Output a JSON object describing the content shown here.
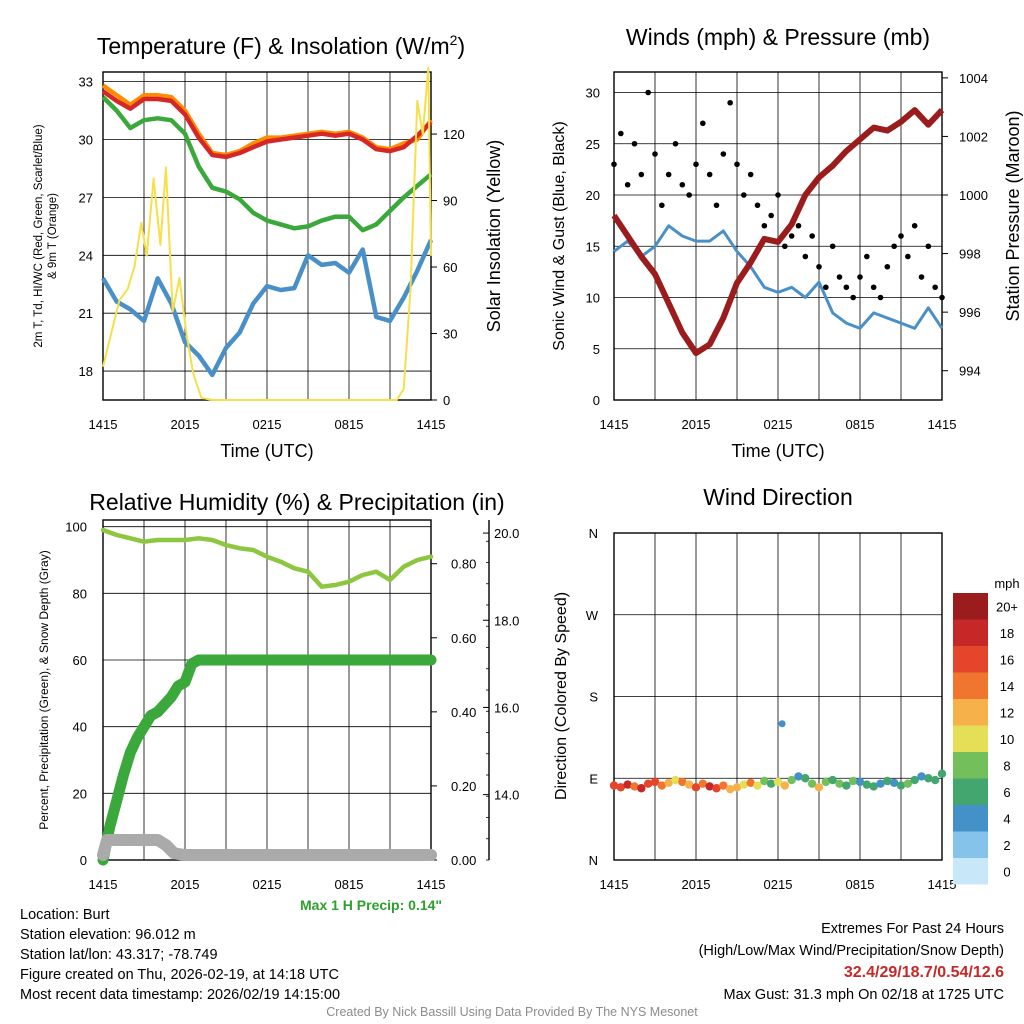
{
  "colors": {
    "temp_red": "#d62728",
    "temp_scarlet": "#e53b2c",
    "temp_orange": "#ff8c00",
    "dewpoint_green": "#3aa83a",
    "windchill_blue": "#4a90c8",
    "solar_yellow": "#f5e04a",
    "wind_blue": "#4a90c8",
    "gust_black": "#000000",
    "pressure_maroon": "#9b1c1c",
    "rh_green": "#8dc63f",
    "precip_green": "#3aa83a",
    "snow_gray": "#aaaaaa",
    "maxprecip_green": "#2ca02c",
    "extreme_red": "#c62828",
    "credit_gray": "#8c8c8c"
  },
  "chart_data": [
    {
      "id": "temp",
      "type": "line",
      "title": "Temperature (F) & Insolation (W/m²)",
      "title_main": "Temperature (F) & Insolation (W/m",
      "title_sup": "2",
      "title_close": ")",
      "xlabel": "Time (UTC)",
      "ylabel_left_line1": "2m T, Td, HI/WC (Red, Green, Scarlet/Blue)",
      "ylabel_left_line2": "& 9m T (Orange)",
      "ylabel_right": "Solar Insolation (Yellow)",
      "xticks": [
        "1415",
        "2015",
        "0215",
        "0815",
        "1415"
      ],
      "xlim": [
        0,
        24
      ],
      "ylim_left": [
        16.5,
        33.5
      ],
      "ylim_right": [
        0,
        148
      ],
      "yticks_left": [
        18,
        21,
        24,
        27,
        30,
        33
      ],
      "yticks_right": [
        0,
        30,
        60,
        90,
        120
      ],
      "series": [
        {
          "name": "9m T (Orange)",
          "axis": "left",
          "color": "#ff8c00",
          "x": [
            0,
            1,
            2,
            3,
            4,
            5,
            6,
            7,
            8,
            9,
            10,
            11,
            12,
            13,
            14,
            15,
            16,
            17,
            18,
            19,
            20,
            21,
            22,
            23,
            24
          ],
          "y": [
            32.8,
            32.3,
            31.8,
            32.3,
            32.3,
            32.2,
            31.5,
            30.3,
            29.3,
            29.2,
            29.4,
            29.8,
            30.1,
            30.1,
            30.2,
            30.3,
            30.4,
            30.3,
            30.4,
            30.1,
            29.6,
            29.5,
            29.8,
            30.0,
            31.0
          ]
        },
        {
          "name": "2m T (Red)",
          "axis": "left",
          "color": "#d62728",
          "x": [
            0,
            1,
            2,
            3,
            4,
            5,
            6,
            7,
            8,
            9,
            10,
            11,
            12,
            13,
            14,
            15,
            16,
            17,
            18,
            19,
            20,
            21,
            22,
            23,
            24
          ],
          "y": [
            32.5,
            32.0,
            31.6,
            32.1,
            32.1,
            32.0,
            31.3,
            30.1,
            29.2,
            29.1,
            29.3,
            29.6,
            29.9,
            30.0,
            30.1,
            30.2,
            30.3,
            30.2,
            30.3,
            30.0,
            29.5,
            29.4,
            29.6,
            30.2,
            30.9
          ]
        },
        {
          "name": "Td (Green)",
          "axis": "left",
          "color": "#3aa83a",
          "x": [
            0,
            1,
            2,
            3,
            4,
            5,
            6,
            7,
            8,
            9,
            10,
            11,
            12,
            13,
            14,
            15,
            16,
            17,
            18,
            19,
            20,
            21,
            22,
            23,
            24
          ],
          "y": [
            32.2,
            31.5,
            30.6,
            31.0,
            31.1,
            31.0,
            30.3,
            28.6,
            27.5,
            27.3,
            26.9,
            26.2,
            25.8,
            25.6,
            25.4,
            25.5,
            25.8,
            26.0,
            26.0,
            25.3,
            25.6,
            26.3,
            27.0,
            27.6,
            28.2
          ]
        },
        {
          "name": "HI/WC (Blue)",
          "axis": "left",
          "color": "#4a90c8",
          "x": [
            0,
            1,
            2,
            3,
            4,
            5,
            6,
            7,
            8,
            9,
            10,
            11,
            12,
            13,
            14,
            15,
            16,
            17,
            18,
            19,
            20,
            21,
            22,
            23,
            24
          ],
          "y": [
            22.8,
            21.6,
            21.2,
            20.6,
            22.8,
            21.5,
            19.5,
            18.8,
            17.8,
            19.2,
            20.0,
            21.5,
            22.4,
            22.2,
            22.3,
            24.0,
            23.5,
            23.6,
            23.1,
            24.3,
            20.8,
            20.6,
            21.8,
            23.2,
            24.8
          ]
        },
        {
          "name": "Solar Insolation (Yellow)",
          "axis": "right",
          "color": "#f5e04a",
          "x": [
            0,
            0.6,
            1.2,
            1.8,
            2.3,
            2.8,
            3.2,
            3.7,
            4.2,
            4.6,
            5.1,
            5.6,
            6.1,
            6.6,
            7.2,
            8,
            12,
            16,
            20,
            21.5,
            22.0,
            22.5,
            23.0,
            23.4,
            23.8,
            24
          ],
          "y": [
            15,
            30,
            45,
            50,
            60,
            80,
            65,
            100,
            70,
            105,
            40,
            55,
            30,
            12,
            1,
            0,
            0,
            0,
            0,
            0,
            5,
            50,
            135,
            120,
            150,
            65
          ]
        }
      ]
    },
    {
      "id": "wind",
      "type": "line",
      "title": "Winds (mph) & Pressure (mb)",
      "xlabel": "Time (UTC)",
      "ylabel_left": "Sonic Wind & Gust (Blue, Black)",
      "ylabel_right": "Station Pressure (Maroon)",
      "xticks": [
        "1415",
        "2015",
        "0215",
        "0815",
        "1415"
      ],
      "xlim": [
        0,
        24
      ],
      "ylim_left": [
        0,
        32
      ],
      "ylim_right": [
        993.0,
        1004.2
      ],
      "yticks_left": [
        0,
        5,
        10,
        15,
        20,
        25,
        30
      ],
      "yticks_right": [
        994,
        996,
        998,
        1000,
        1002,
        1004
      ],
      "series": [
        {
          "name": "Sonic Wind (Blue)",
          "axis": "left",
          "color": "#4a90c8",
          "x": [
            0,
            1,
            2,
            3,
            4,
            5,
            6,
            7,
            8,
            9,
            10,
            11,
            12,
            13,
            14,
            15,
            16,
            17,
            18,
            19,
            20,
            21,
            22,
            23,
            24
          ],
          "y": [
            14.5,
            15.5,
            14.0,
            15.0,
            17.0,
            16.0,
            15.5,
            15.5,
            16.5,
            14.5,
            13.0,
            11.0,
            10.5,
            11.0,
            10.0,
            11.5,
            8.5,
            7.5,
            7.0,
            8.5,
            8.0,
            7.5,
            7.0,
            9.0,
            7.0
          ]
        },
        {
          "name": "Gust (Black)",
          "axis": "left",
          "color": "#000000",
          "style": "points",
          "x": [
            0,
            0.5,
            1,
            1.5,
            2,
            2.5,
            3,
            3.5,
            4,
            4.5,
            5,
            5.5,
            6,
            6.5,
            7,
            7.5,
            8,
            8.5,
            9,
            9.5,
            10,
            10.5,
            11,
            11.5,
            12,
            12.5,
            13,
            13.5,
            14,
            14.5,
            15,
            15.5,
            16,
            16.5,
            17,
            17.5,
            18,
            18.5,
            19,
            19.5,
            20,
            20.5,
            21,
            21.5,
            22,
            22.5,
            23,
            23.5,
            24
          ],
          "y": [
            23,
            26,
            21,
            25,
            22,
            30,
            24,
            19,
            22,
            25,
            21,
            20,
            23,
            27,
            22,
            19,
            24,
            29,
            23,
            20,
            22,
            19,
            17,
            18,
            20,
            15,
            16,
            17,
            14,
            16,
            13,
            11,
            15,
            12,
            11,
            10,
            12,
            14,
            11,
            10,
            13,
            15,
            16,
            14,
            17,
            12,
            15,
            11,
            10
          ]
        },
        {
          "name": "Station Pressure (Maroon)",
          "axis": "right",
          "color": "#9b1c1c",
          "x": [
            0,
            1,
            2,
            3,
            4,
            5,
            6,
            7,
            8,
            9,
            10,
            11,
            12,
            13,
            14,
            15,
            16,
            17,
            18,
            19,
            20,
            21,
            22,
            23,
            24
          ],
          "y": [
            999.3,
            998.6,
            997.9,
            997.3,
            996.3,
            995.3,
            994.6,
            994.9,
            995.8,
            997.0,
            997.7,
            998.5,
            998.4,
            999.0,
            1000.0,
            1000.6,
            1001.0,
            1001.5,
            1001.9,
            1002.3,
            1002.2,
            1002.5,
            1002.9,
            1002.4,
            1002.9
          ]
        }
      ]
    },
    {
      "id": "rh",
      "type": "line",
      "title": "Relative Humidity (%) & Precipitation (in)",
      "ylabel_left": "Percent, Precipitation (Green), & Snow Depth (Gray)",
      "xticks": [
        "1415",
        "2015",
        "0215",
        "0815",
        "1415"
      ],
      "xlim": [
        0,
        24
      ],
      "ylim_left": [
        0,
        102
      ],
      "ylim_mid": [
        0,
        0.918
      ],
      "ylim_right": [
        12.5,
        20.3
      ],
      "yticks_left": [
        0,
        20,
        40,
        60,
        80,
        100
      ],
      "yticks_mid": [
        "0.00",
        "0.20",
        "0.40",
        "0.60",
        "0.80"
      ],
      "yticks_right": [
        "14.0",
        "16.0",
        "18.0",
        "20.0"
      ],
      "series": [
        {
          "name": "Relative Humidity (Green)",
          "axis": "left",
          "color": "#8dc63f",
          "x": [
            0,
            1,
            2,
            3,
            4,
            5,
            6,
            7,
            8,
            9,
            10,
            11,
            12,
            13,
            14,
            15,
            16,
            17,
            18,
            19,
            20,
            21,
            22,
            23,
            24
          ],
          "y": [
            99,
            97.5,
            96.5,
            95.5,
            96,
            96,
            96,
            96.5,
            96,
            94.5,
            93.5,
            93,
            91,
            89.5,
            87.5,
            86.5,
            82,
            82.5,
            83.5,
            85.5,
            86.5,
            84,
            88,
            90,
            91
          ]
        },
        {
          "name": "Precipitation (Green)",
          "axis": "mid",
          "color": "#3aa83a",
          "x": [
            0,
            0.5,
            1,
            1.5,
            2,
            2.5,
            3,
            3.5,
            4,
            4.5,
            5,
            5.5,
            6,
            6.5,
            7,
            8,
            10,
            12,
            14,
            16,
            18,
            20,
            22,
            24
          ],
          "y": [
            0.0,
            0.09,
            0.16,
            0.23,
            0.29,
            0.33,
            0.36,
            0.39,
            0.4,
            0.42,
            0.44,
            0.47,
            0.48,
            0.53,
            0.54,
            0.54,
            0.54,
            0.54,
            0.54,
            0.54,
            0.54,
            0.54,
            0.54,
            0.54
          ]
        },
        {
          "name": "Snow Depth (Gray)",
          "axis": "left",
          "color": "#aaaaaa",
          "x": [
            0,
            0.3,
            1,
            2,
            3,
            4,
            4.6,
            5.2,
            6,
            8,
            10,
            12,
            14,
            16,
            18,
            20,
            22,
            24
          ],
          "y": [
            1.5,
            6,
            6,
            6,
            6,
            6,
            4.5,
            2,
            1.5,
            1.5,
            1.5,
            1.5,
            1.5,
            1.5,
            1.5,
            1.5,
            1.5,
            1.5
          ]
        }
      ]
    },
    {
      "id": "dir",
      "type": "scatter",
      "title": "Wind Direction",
      "ylabel": "Direction (Colored By Speed)",
      "xticks": [
        "1415",
        "2015",
        "0215",
        "0815",
        "1415"
      ],
      "xlim": [
        0,
        24
      ],
      "ylim": [
        0,
        360
      ],
      "yticks": [
        "N",
        "E",
        "S",
        "W",
        "N"
      ],
      "yticks_values": [
        0,
        90,
        180,
        270,
        360
      ],
      "legend": {
        "title": "mph",
        "labels": [
          "0",
          "2",
          "4",
          "6",
          "8",
          "10",
          "12",
          "14",
          "16",
          "18",
          "20+"
        ],
        "colors": [
          "#c8e7f9",
          "#86c3ea",
          "#4490c8",
          "#42a66e",
          "#73bf5c",
          "#e4df56",
          "#f6b14a",
          "#f0762f",
          "#e4452b",
          "#c62828",
          "#9b1c1c"
        ]
      },
      "points": {
        "x": [
          0,
          0.5,
          1,
          1.5,
          2,
          2.5,
          3,
          3.5,
          4,
          4.5,
          5,
          5.5,
          6,
          6.5,
          7,
          7.5,
          8,
          8.5,
          9,
          9.5,
          10,
          10.5,
          11,
          11.5,
          12,
          12.5,
          13,
          13.5,
          14,
          14.5,
          15,
          15.5,
          16,
          16.5,
          17,
          17.5,
          18,
          18.5,
          19,
          19.5,
          20,
          20.5,
          21,
          21.5,
          22,
          22.5,
          23,
          23.5,
          24
        ],
        "y": [
          82,
          80,
          83,
          81,
          79,
          84,
          86,
          82,
          85,
          88,
          86,
          83,
          80,
          84,
          81,
          79,
          82,
          78,
          80,
          83,
          85,
          82,
          87,
          84,
          86,
          82,
          88,
          92,
          90,
          84,
          80,
          86,
          88,
          84,
          82,
          87,
          86,
          83,
          81,
          84,
          87,
          85,
          82,
          84,
          88,
          92,
          90,
          88,
          95
        ],
        "speed": [
          16,
          17,
          18,
          15,
          19,
          17,
          16,
          14,
          12,
          10,
          14,
          13,
          16,
          15,
          18,
          17,
          14,
          13,
          12,
          10,
          14,
          11,
          8,
          6,
          10,
          12,
          9,
          5,
          7,
          9,
          12,
          8,
          6,
          8,
          7,
          9,
          5,
          6,
          7,
          4,
          6,
          5,
          7,
          8,
          6,
          5,
          6,
          7,
          6
        ]
      },
      "outlier": {
        "x": 12.3,
        "y": 150,
        "speed": 4
      }
    }
  ],
  "annotations": {
    "max_precip": "Max 1 H Precip: 0.14\""
  },
  "info": {
    "location": "Location: Burt",
    "elevation": "Station elevation: 96.012 m",
    "latlon": "Station lat/lon: 43.317; -78.749",
    "created": "Figure created on Thu, 2026-02-19, at 14:18 UTC",
    "recent": "Most recent data timestamp: 2026/02/19 14:15:00"
  },
  "extremes": {
    "title": "Extremes For Past 24 Hours",
    "subtitle": "(High/Low/Max Wind/Precipitation/Snow Depth)",
    "values": "32.4/29/18.7/0.54/12.6",
    "gust": "Max Gust: 31.3 mph On 02/18 at 1725 UTC"
  },
  "credit": "Created By Nick Bassill Using Data Provided By The NYS Mesonet"
}
